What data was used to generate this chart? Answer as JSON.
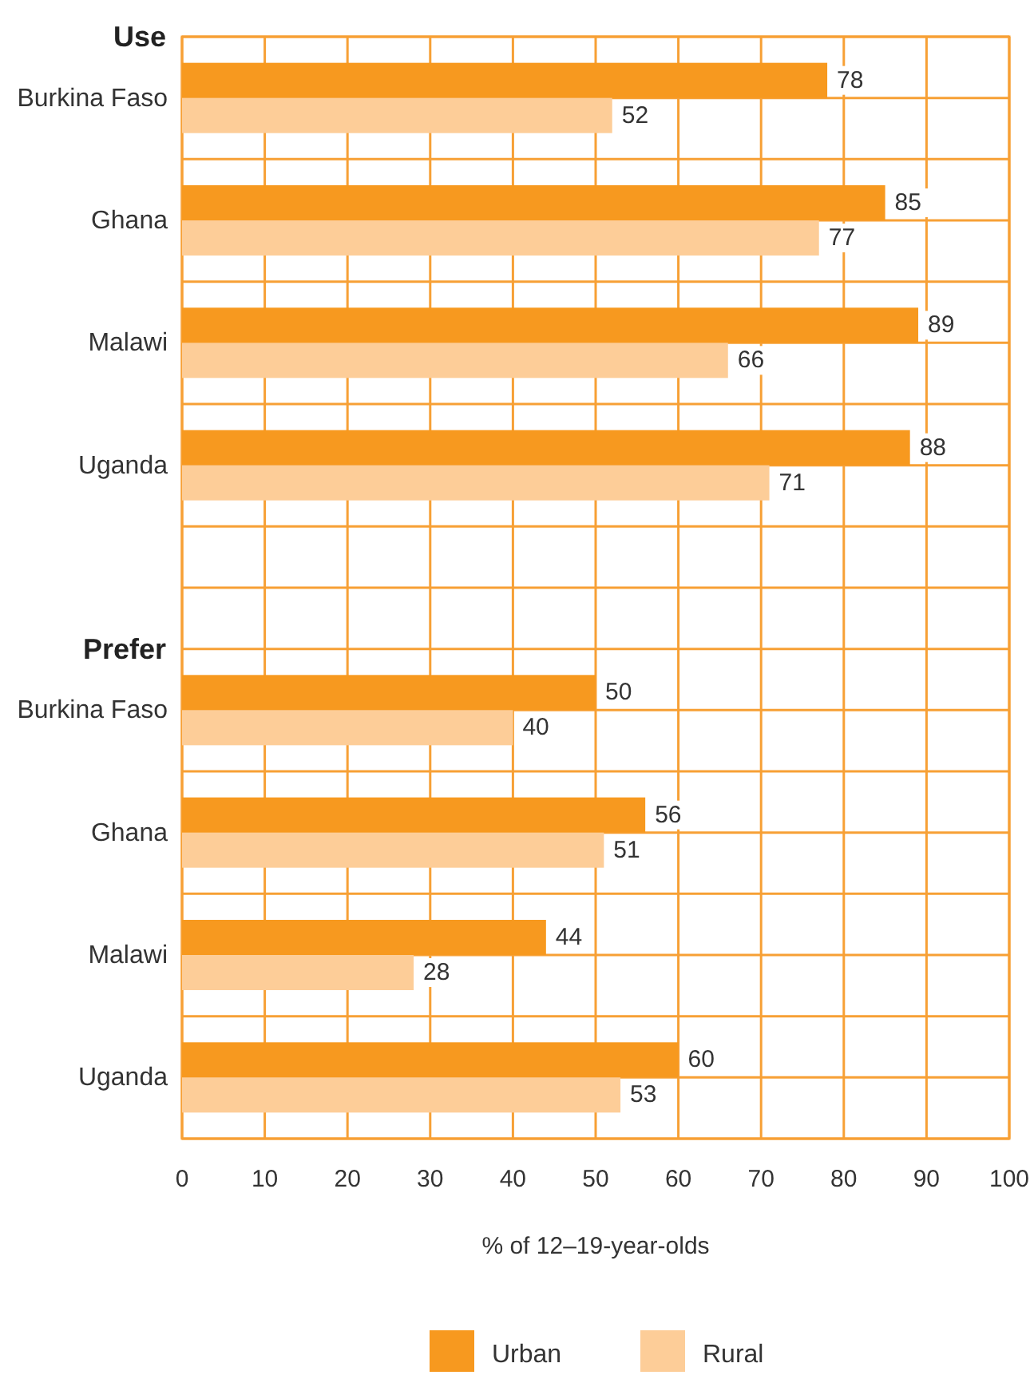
{
  "chart_data": {
    "type": "bar",
    "orientation": "horizontal",
    "categories": [
      "Burkina Faso",
      "Ghana",
      "Malawi",
      "Uganda",
      null,
      "Burkina Faso",
      "Ghana",
      "Malawi",
      "Uganda"
    ],
    "series": [
      {
        "name": "Urban",
        "color": "#f7991f",
        "values": [
          78,
          85,
          89,
          88,
          null,
          50,
          56,
          44,
          60
        ]
      },
      {
        "name": "Rural",
        "color": "#fdcd98",
        "values": [
          52,
          77,
          66,
          71,
          null,
          40,
          51,
          28,
          53
        ]
      }
    ],
    "xlim": [
      0,
      100
    ],
    "xticks": [
      0,
      10,
      20,
      30,
      40,
      50,
      60,
      70,
      80,
      90,
      100
    ],
    "xlabel": "% of 12–19-year-olds",
    "annotations": [
      "Use",
      "Prefer"
    ],
    "grid": true,
    "legend": "bottom",
    "data_labels": true
  }
}
